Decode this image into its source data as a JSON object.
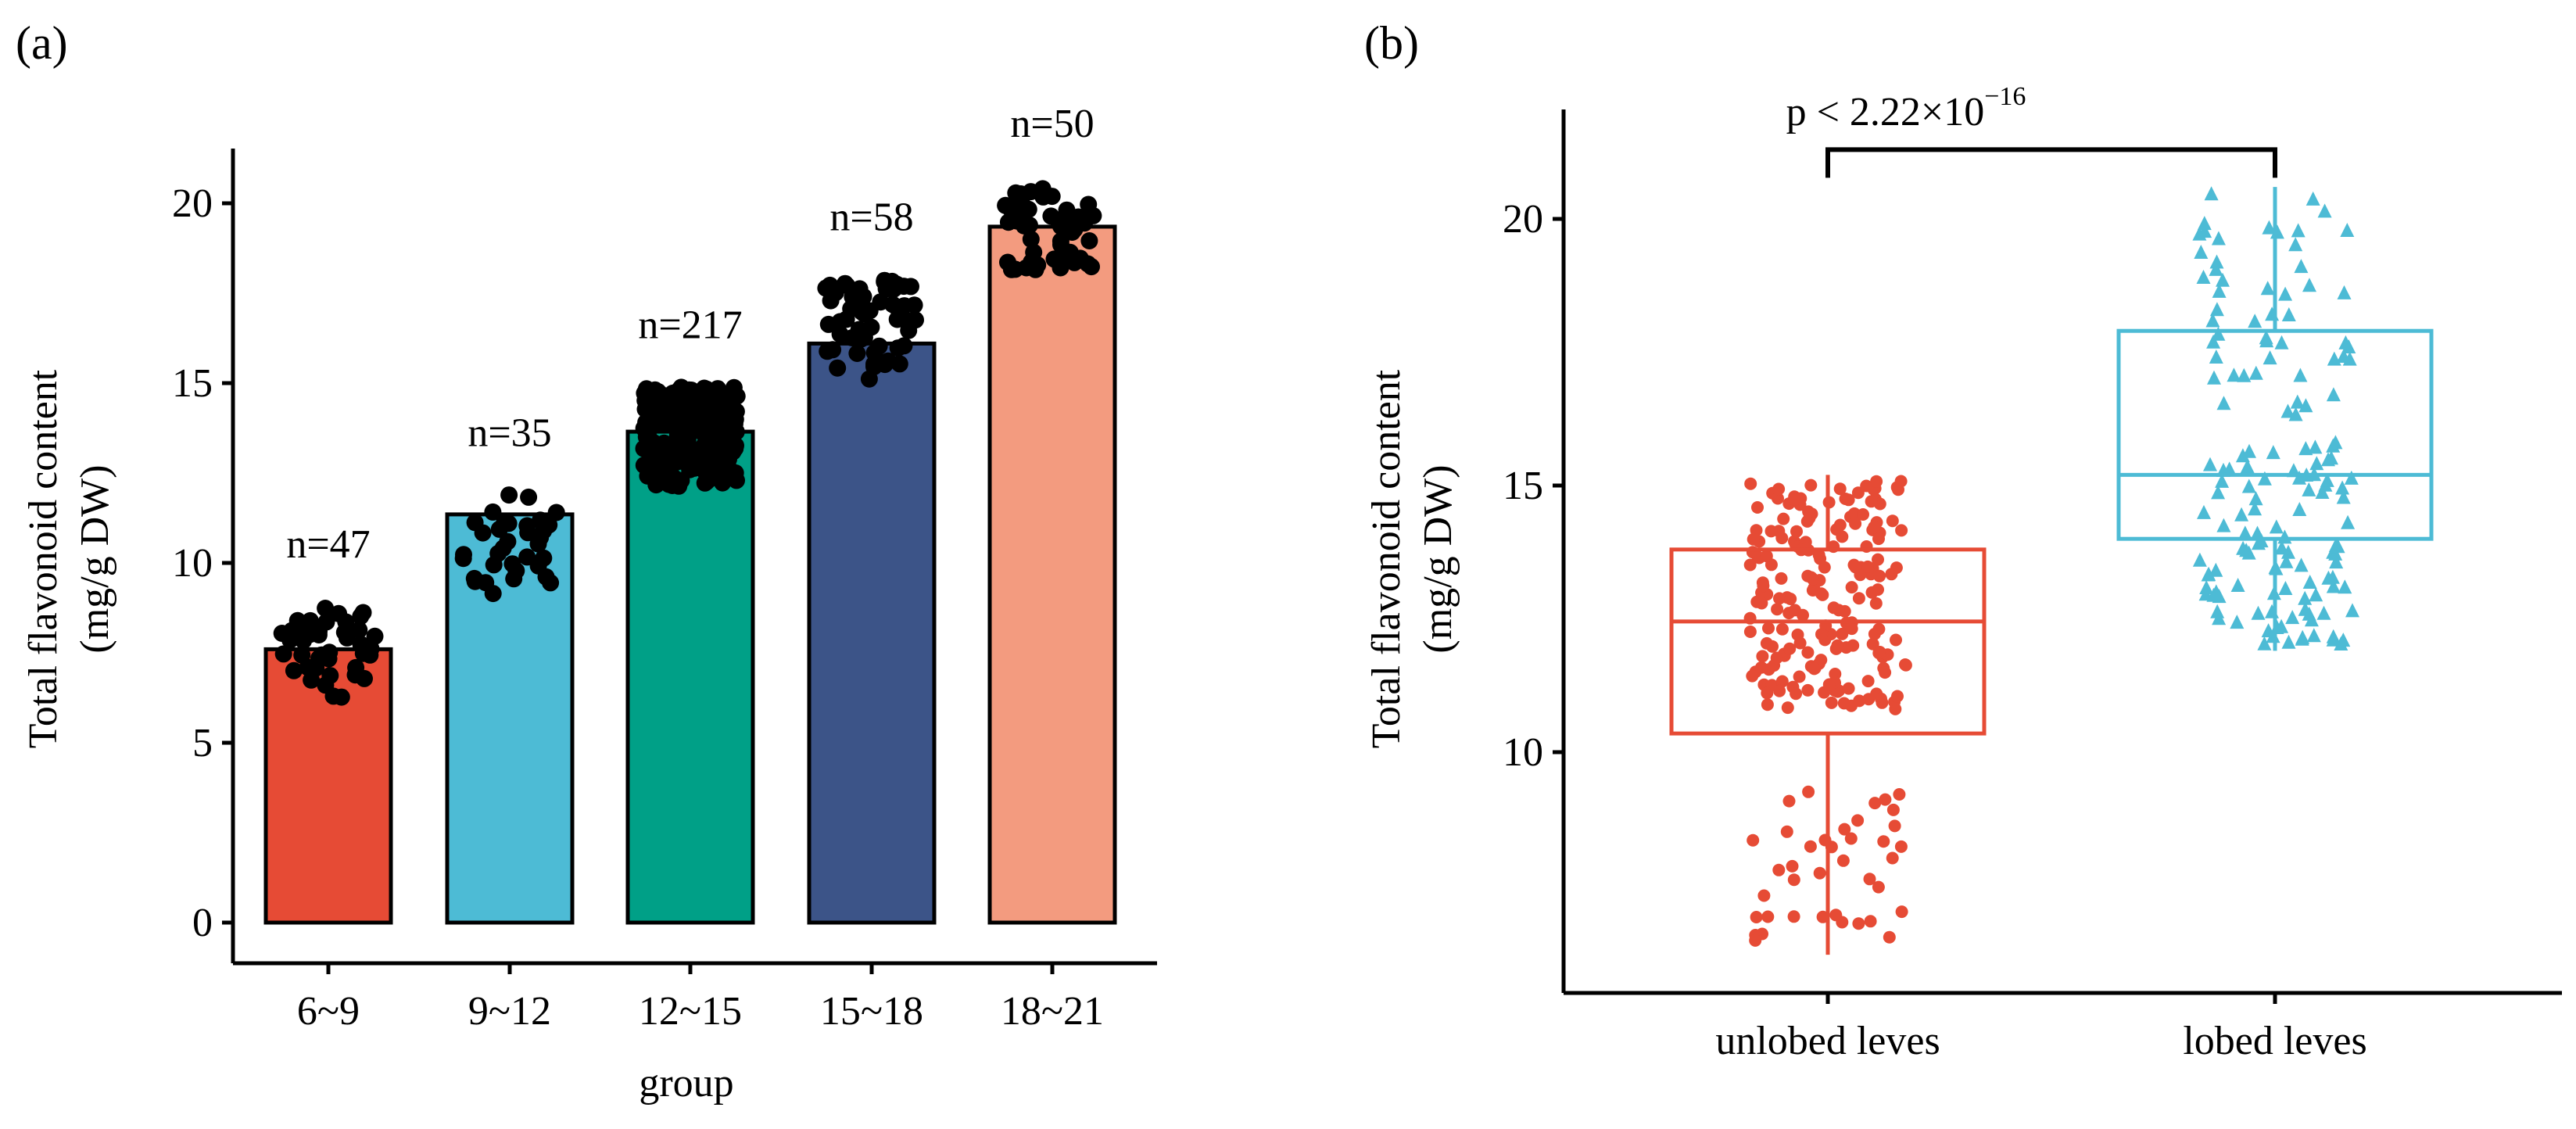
{
  "panels": {
    "a_label": "(a)",
    "b_label": "(b)"
  },
  "chart_data": [
    {
      "type": "bar",
      "panel": "(a)",
      "title": "",
      "xlabel": "group",
      "ylabel_line1": "Total flavonoid content",
      "ylabel_line2": "(mg/g DW)",
      "ylim": [
        0,
        22
      ],
      "yticks": [
        0,
        5,
        10,
        15,
        20
      ],
      "grid": false,
      "legend": "none",
      "categories": [
        "6~9",
        "9~12",
        "12~15",
        "15~18",
        "18~21"
      ],
      "values": [
        7.6,
        11.35,
        13.65,
        16.1,
        19.35
      ],
      "bar_colors": [
        "#E64B35",
        "#4DBBD5",
        "#00A087",
        "#3C5488",
        "#F39B7F"
      ],
      "count_labels": [
        "n=47",
        "n=35",
        "n=217",
        "n=58",
        "n=50"
      ],
      "jitter_points": [
        {
          "category": "6~9",
          "n": 47,
          "min": 6.2,
          "max": 8.8,
          "color": "#000000"
        },
        {
          "category": "9~12",
          "n": 35,
          "min": 9.1,
          "max": 11.9,
          "color": "#000000"
        },
        {
          "category": "12~15",
          "n": 217,
          "min": 12.1,
          "max": 14.9,
          "color": "#000000"
        },
        {
          "category": "15~18",
          "n": 58,
          "min": 15.1,
          "max": 17.9,
          "color": "#000000"
        },
        {
          "category": "18~21",
          "n": 50,
          "min": 18.1,
          "max": 20.5,
          "color": "#000000"
        }
      ]
    },
    {
      "type": "box",
      "panel": "(b)",
      "title": "",
      "xlabel": "",
      "ylabel_line1": "Total flavonoid content",
      "ylabel_line2": "(mg/g DW)",
      "ylim": [
        5.6,
        22.2
      ],
      "yticks": [
        10,
        15,
        20
      ],
      "grid": false,
      "legend": "none",
      "categories": [
        "unlobed leves",
        "lobed leves"
      ],
      "series": [
        {
          "category": "unlobed leves",
          "whisker_low": 6.2,
          "q1": 10.35,
          "median": 12.45,
          "q3": 13.8,
          "whisker_high": 15.2,
          "color": "#E64B35",
          "marker": "circle",
          "points_n": 230
        },
        {
          "category": "lobed leves",
          "whisker_low": 11.9,
          "q1": 14.0,
          "median": 15.2,
          "q3": 17.9,
          "whisker_high": 20.6,
          "color": "#4DBBD5",
          "marker": "triangle",
          "points_n": 150
        }
      ],
      "annotation": {
        "text_base": "p < 2.22×10",
        "text_exp": "−16",
        "bracket_y": 21.3
      }
    }
  ]
}
